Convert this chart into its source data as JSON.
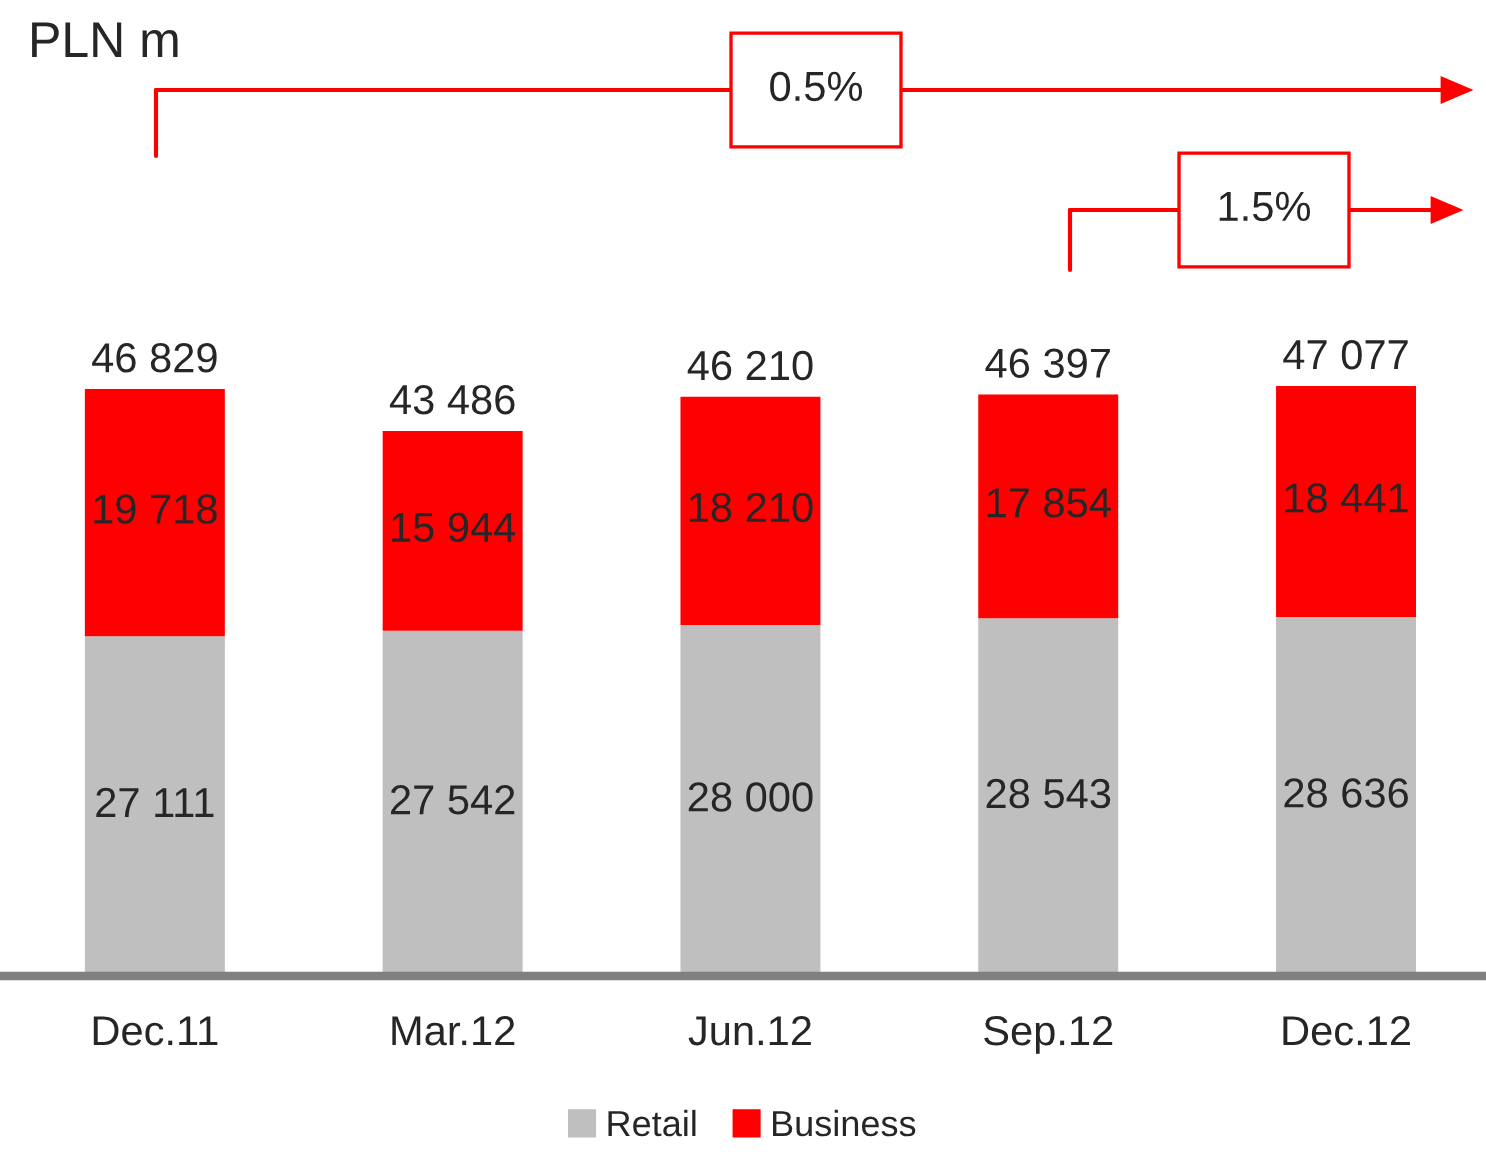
{
  "chart_data": {
    "type": "bar",
    "title": "PLN m",
    "stacked": true,
    "categories": [
      "Dec.11",
      "Mar.12",
      "Jun.12",
      "Sep.12",
      "Dec.12"
    ],
    "series": [
      {
        "name": "Retail",
        "color": "#bfbfbf",
        "values": [
          27111,
          27542,
          28000,
          28543,
          28636
        ],
        "value_labels": [
          "27 111",
          "27 542",
          "28 000",
          "28 543",
          "28 636"
        ]
      },
      {
        "name": "Business",
        "color": "#ff0000",
        "values": [
          19718,
          15944,
          18210,
          17854,
          18441
        ],
        "value_labels": [
          "19 718",
          "15 944",
          "18 210",
          "17 854",
          "18 441"
        ]
      }
    ],
    "totals": [
      "46 829",
      "43 486",
      "46 210",
      "46 397",
      "47 077"
    ],
    "annotations": [
      "0.5%",
      "1.5%"
    ],
    "legend": "bottom",
    "grid": false,
    "tick_labels": "x"
  }
}
